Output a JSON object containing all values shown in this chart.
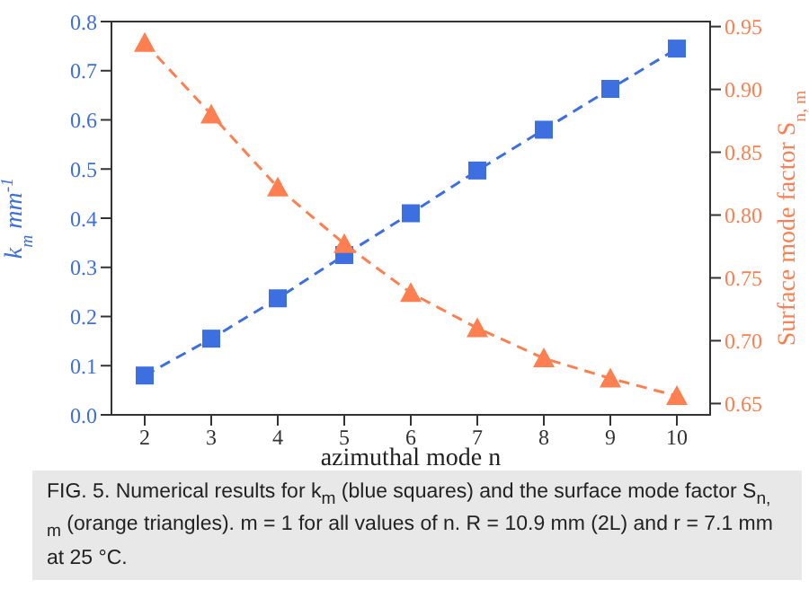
{
  "chart_data": {
    "type": "line",
    "xlabel": "azimuthal mode n",
    "ylabel": "k$_{m}$ mm$^{-1}$",
    "y2label": "Surface mode factor S$_{n, m}$",
    "x": [
      2,
      3,
      4,
      5,
      6,
      7,
      8,
      9,
      10
    ],
    "xlim": [
      1.5,
      10.5
    ],
    "xticks": [
      2,
      3,
      4,
      5,
      6,
      7,
      8,
      9,
      10
    ],
    "ylim": [
      0,
      0.8
    ],
    "yticks": [
      {
        "value": 0,
        "label": "0.0"
      },
      {
        "value": 0.1,
        "label": "0.1"
      },
      {
        "value": 0.2,
        "label": "0.2"
      },
      {
        "value": 0.3,
        "label": "0.3"
      },
      {
        "value": 0.4,
        "label": "0.4"
      },
      {
        "value": 0.5,
        "label": "0.5"
      },
      {
        "value": 0.6,
        "label": "0.6"
      },
      {
        "value": 0.7,
        "label": "0.7"
      },
      {
        "value": 0.8,
        "label": "0.8"
      }
    ],
    "y2lim": [
      0.641,
      0.954
    ],
    "y2ticks": [
      {
        "value": 0.65,
        "label": "0.65"
      },
      {
        "value": 0.7,
        "label": "0.70"
      },
      {
        "value": 0.75,
        "label": "0.75"
      },
      {
        "value": 0.8,
        "label": "0.80"
      },
      {
        "value": 0.85,
        "label": "0.85"
      },
      {
        "value": 0.9,
        "label": "0.90"
      },
      {
        "value": 0.95,
        "label": "0.95"
      }
    ],
    "series": [
      {
        "color": "#3d6fe0",
        "marker": "square",
        "values": [
          0.08,
          0.155,
          0.237,
          0.325,
          0.41,
          0.497,
          0.58,
          0.663,
          0.745
        ]
      },
      {
        "color": "#ff7f50",
        "marker": "triangle",
        "axis": "y2",
        "values": [
          0.937,
          0.88,
          0.822,
          0.777,
          0.738,
          0.71,
          0.686,
          0.67,
          0.656
        ]
      }
    ],
    "line_style": "dashed",
    "grid": false,
    "legend": false,
    "annotations": [
      "FIG. 5. Numerical results for k$_{m}$ (blue squares) and the surface mode factor S$_{n, m}$ (orange triangles). m = 1 for all values of n. R = 10.9 mm (2L) and r = 7.1 mm at 25 °C."
    ]
  }
}
